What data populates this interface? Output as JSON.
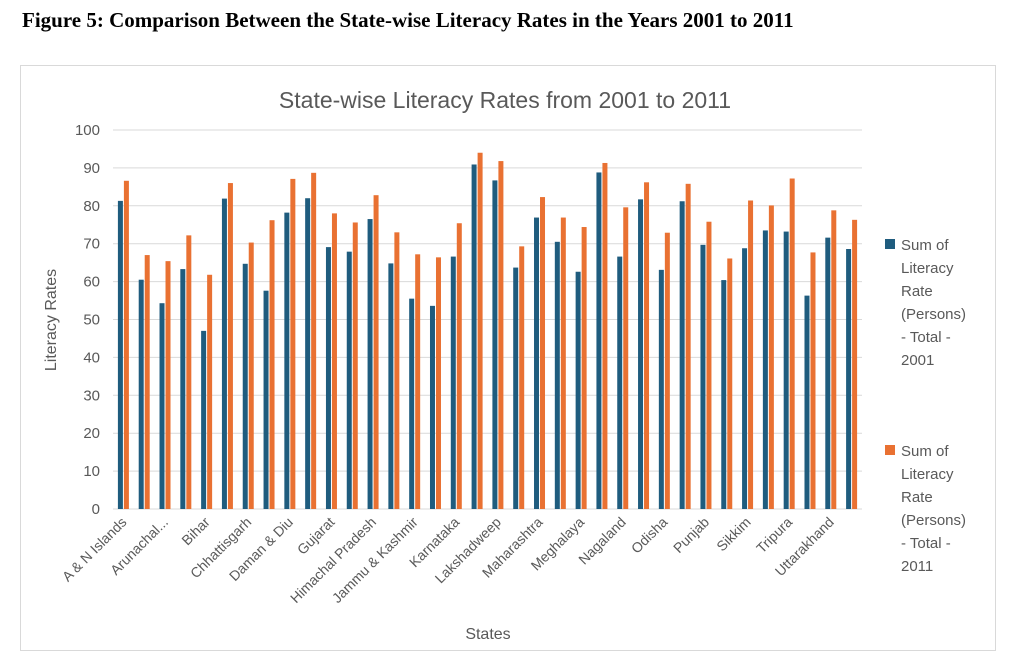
{
  "caption": "Figure 5: Comparison Between the State-wise Literacy Rates in the Years 2001 to 2011",
  "chart_data": {
    "type": "bar",
    "title": "State-wise Literacy Rates from 2001 to 2011",
    "xlabel": "States",
    "ylabel": "Literacy Rates",
    "ylim": [
      0,
      100
    ],
    "yticks": [
      0,
      10,
      20,
      30,
      40,
      50,
      60,
      70,
      80,
      90,
      100
    ],
    "grid": true,
    "legend_position": "right",
    "categories": [
      "A & N Islands",
      "",
      "Arunachal...",
      "",
      "Bihar",
      "",
      "Chhattisgarh",
      "",
      "Daman & Diu",
      "",
      "Gujarat",
      "",
      "Himachal Pradesh",
      "",
      "Jammu & Kashmir",
      "",
      "Karnataka",
      "",
      "Lakshadweep",
      "",
      "Maharashtra",
      "",
      "Meghalaya",
      "",
      "Nagaland",
      "",
      "Odisha",
      "",
      "Punjab",
      "",
      "Sikkim",
      "",
      "Tripura",
      "",
      "Uttarakhand",
      ""
    ],
    "series": [
      {
        "name": "Sum of Literacy Rate (Persons) - Total - 2001",
        "color": "#1F5C7E",
        "values": [
          81.3,
          60.5,
          54.3,
          63.3,
          47.0,
          81.9,
          64.7,
          57.6,
          78.2,
          82.0,
          69.1,
          67.9,
          76.5,
          64.8,
          55.5,
          53.6,
          66.6,
          90.9,
          86.7,
          63.7,
          76.9,
          70.5,
          62.6,
          88.8,
          66.6,
          81.7,
          63.1,
          81.2,
          69.7,
          60.4,
          68.8,
          73.5,
          73.2,
          56.3,
          71.6,
          68.6
        ]
      },
      {
        "name": "Sum of Literacy Rate (Persons) - Total - 2011",
        "color": "#E97132",
        "values": [
          86.6,
          67.0,
          65.4,
          72.2,
          61.8,
          86.0,
          70.3,
          76.2,
          87.1,
          88.7,
          78.0,
          75.6,
          82.8,
          73.0,
          67.2,
          66.4,
          75.4,
          94.0,
          91.8,
          69.3,
          82.3,
          76.9,
          74.4,
          91.3,
          79.6,
          86.2,
          72.9,
          85.8,
          75.8,
          66.1,
          81.4,
          80.1,
          87.2,
          67.7,
          78.8,
          76.3
        ]
      }
    ]
  }
}
